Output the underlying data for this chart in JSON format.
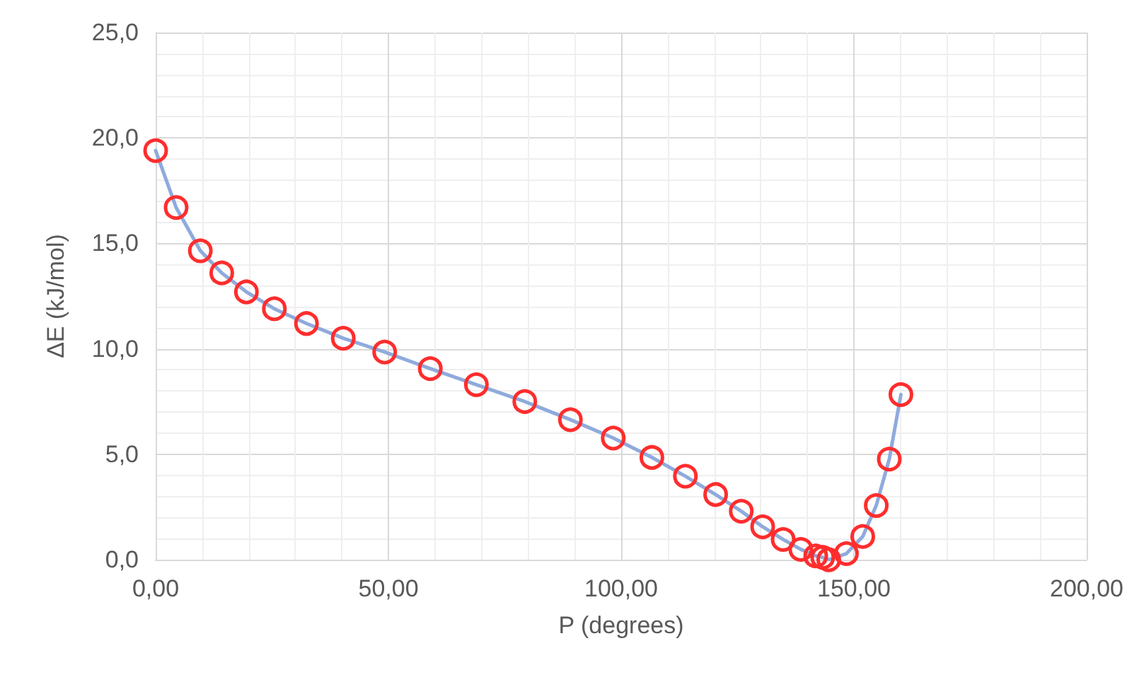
{
  "chart_data": {
    "type": "line",
    "xlabel": "P (degrees)",
    "ylabel": "ΔE (kJ/mol)",
    "x": [
      0.0,
      4.4,
      9.6,
      14.2,
      19.5,
      25.5,
      32.4,
      40.3,
      49.2,
      59.0,
      68.9,
      79.3,
      89.1,
      98.3,
      106.6,
      113.8,
      120.3,
      125.8,
      130.4,
      134.8,
      138.6,
      141.8,
      143.3,
      144.6,
      148.4,
      151.9,
      154.8,
      157.6,
      160.1
    ],
    "series": [
      {
        "color": "#ff2d2d",
        "values": [
          19.4,
          16.7,
          14.65,
          13.6,
          12.7,
          11.9,
          11.2,
          10.5,
          9.85,
          9.06,
          8.3,
          7.5,
          6.64,
          5.77,
          4.85,
          3.96,
          3.09,
          2.3,
          1.56,
          0.96,
          0.49,
          0.18,
          0.11,
          0.0,
          0.29,
          1.1,
          2.57,
          4.77,
          7.83
        ]
      }
    ],
    "xlim": [
      0,
      200
    ],
    "xticks": [
      {
        "value": 0,
        "label": "0,00"
      },
      {
        "value": 50,
        "label": "50,00"
      },
      {
        "value": 100,
        "label": "100,00"
      },
      {
        "value": 150,
        "label": "150,00"
      },
      {
        "value": 200,
        "label": "200,00"
      }
    ],
    "ylim": [
      0,
      25
    ],
    "yticks": [
      {
        "value": 0,
        "label": "0,0"
      },
      {
        "value": 5,
        "label": "5,0"
      },
      {
        "value": 10,
        "label": "10,0"
      },
      {
        "value": 15,
        "label": "15,0"
      },
      {
        "value": 20,
        "label": "20,0"
      },
      {
        "value": 25,
        "label": "25,0"
      }
    ],
    "grid": true,
    "marker": "circle",
    "line_style": "solid"
  }
}
